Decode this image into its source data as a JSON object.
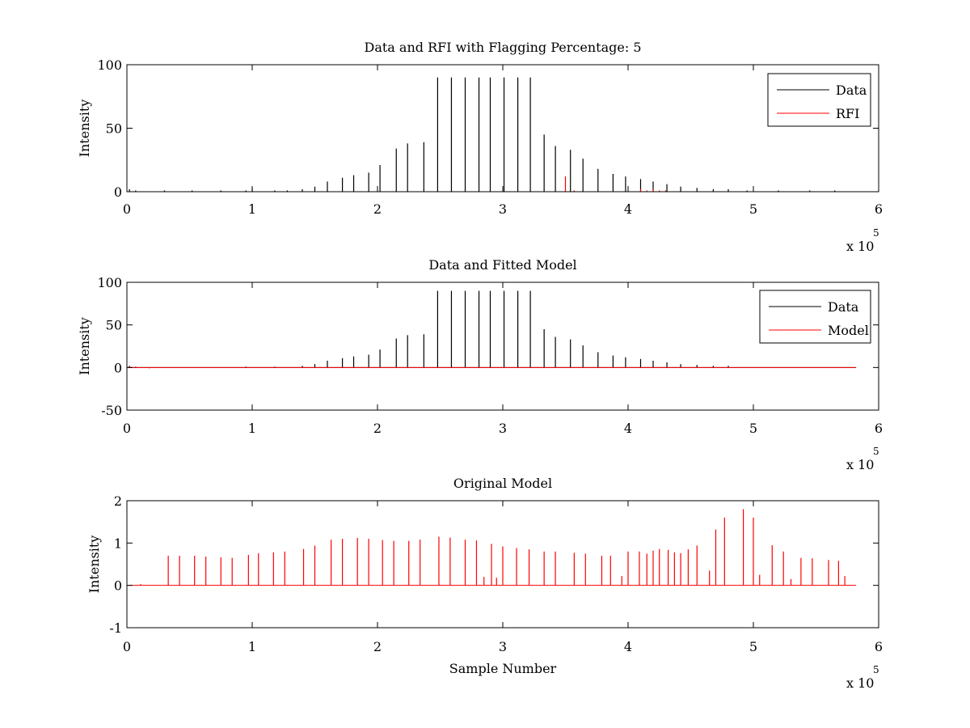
{
  "chart_data": [
    {
      "type": "line",
      "title": "Data and RFI with Flagging Percentage: 5",
      "xlabel": "",
      "ylabel": "Intensity",
      "xlim": [
        0,
        600000
      ],
      "ylim": [
        0,
        100
      ],
      "xticks": [
        "0",
        "1",
        "2",
        "3",
        "4",
        "5",
        "6"
      ],
      "yticks": [
        "0",
        "50",
        "100"
      ],
      "x_multiplier_label": "x 10",
      "x_multiplier_exponent": "5",
      "legend": {
        "placement": "top-right",
        "entries": [
          "Data",
          "RFI"
        ]
      },
      "series": [
        {
          "name": "Data",
          "color": "#000000",
          "baseline": 0,
          "spikes": [
            [
              2000,
              2
            ],
            [
              7000,
              1
            ],
            [
              30000,
              1
            ],
            [
              52000,
              1
            ],
            [
              75000,
              1
            ],
            [
              95000,
              1
            ],
            [
              100000,
              3
            ],
            [
              118000,
              1
            ],
            [
              128000,
              1
            ],
            [
              140000,
              2
            ],
            [
              150000,
              4
            ],
            [
              160000,
              8
            ],
            [
              172000,
              11
            ],
            [
              181000,
              13
            ],
            [
              193000,
              15
            ],
            [
              202000,
              21
            ],
            [
              215000,
              34
            ],
            [
              224000,
              38
            ],
            [
              237000,
              39
            ],
            [
              248000,
              90
            ],
            [
              259000,
              90
            ],
            [
              270000,
              90
            ],
            [
              281000,
              90
            ],
            [
              290000,
              90
            ],
            [
              301000,
              90
            ],
            [
              312000,
              90
            ],
            [
              322000,
              90
            ],
            [
              333000,
              45
            ],
            [
              342000,
              36
            ],
            [
              354000,
              33
            ],
            [
              364000,
              26
            ],
            [
              376000,
              18
            ],
            [
              388000,
              14
            ],
            [
              398000,
              12
            ],
            [
              410000,
              10
            ],
            [
              420000,
              8
            ],
            [
              431000,
              6
            ],
            [
              442000,
              4
            ],
            [
              455000,
              3
            ],
            [
              468000,
              2
            ],
            [
              480000,
              2
            ],
            [
              495000,
              1
            ],
            [
              520000,
              1
            ],
            [
              545000,
              1
            ],
            [
              565000,
              1
            ]
          ]
        },
        {
          "name": "RFI",
          "color": "#ff0000",
          "baseline": 0,
          "spikes": [
            [
              350000,
              12
            ],
            [
              357000,
              1
            ],
            [
              410000,
              2
            ],
            [
              415000,
              1
            ],
            [
              420000,
              2
            ],
            [
              425000,
              1
            ],
            [
              430000,
              1
            ]
          ]
        }
      ]
    },
    {
      "type": "line",
      "title": "Data and Fitted Model",
      "xlabel": "",
      "ylabel": "Intensity",
      "xlim": [
        0,
        600000
      ],
      "ylim": [
        -50,
        100
      ],
      "xticks": [
        "0",
        "1",
        "2",
        "3",
        "4",
        "5",
        "6"
      ],
      "yticks": [
        "-50",
        "0",
        "50",
        "100"
      ],
      "x_multiplier_label": "x 10",
      "x_multiplier_exponent": "5",
      "legend": {
        "placement": "top-right",
        "entries": [
          "Data",
          "Model"
        ]
      },
      "series": [
        {
          "name": "Data",
          "color": "#000000",
          "baseline": 0,
          "spikes": [
            [
              2000,
              2
            ],
            [
              7000,
              1
            ],
            [
              95000,
              1
            ],
            [
              118000,
              1
            ],
            [
              140000,
              2
            ],
            [
              150000,
              4
            ],
            [
              160000,
              8
            ],
            [
              172000,
              11
            ],
            [
              181000,
              13
            ],
            [
              193000,
              15
            ],
            [
              202000,
              21
            ],
            [
              215000,
              34
            ],
            [
              224000,
              38
            ],
            [
              237000,
              39
            ],
            [
              248000,
              90
            ],
            [
              259000,
              90
            ],
            [
              270000,
              90
            ],
            [
              281000,
              90
            ],
            [
              290000,
              90
            ],
            [
              301000,
              90
            ],
            [
              312000,
              90
            ],
            [
              322000,
              90
            ],
            [
              333000,
              45
            ],
            [
              342000,
              36
            ],
            [
              354000,
              33
            ],
            [
              364000,
              26
            ],
            [
              376000,
              18
            ],
            [
              388000,
              14
            ],
            [
              398000,
              12
            ],
            [
              410000,
              10
            ],
            [
              420000,
              8
            ],
            [
              431000,
              6
            ],
            [
              442000,
              4
            ],
            [
              455000,
              3
            ],
            [
              468000,
              2
            ],
            [
              480000,
              2
            ]
          ]
        },
        {
          "name": "Model",
          "color": "#ff0000",
          "baseline": 0,
          "spikes": [
            [
              2000,
              1
            ],
            [
              18000,
              -1
            ]
          ]
        }
      ]
    },
    {
      "type": "line",
      "title": "Original Model",
      "xlabel": "Sample Number",
      "ylabel": "Intensity",
      "xlim": [
        0,
        600000
      ],
      "ylim": [
        -1,
        2
      ],
      "xticks": [
        "0",
        "1",
        "2",
        "3",
        "4",
        "5",
        "6"
      ],
      "yticks": [
        "-1",
        "0",
        "1",
        "2"
      ],
      "x_multiplier_label": "x 10",
      "x_multiplier_exponent": "5",
      "series": [
        {
          "color": "#ff0000",
          "baseline": 0,
          "spikes": [
            [
              11000,
              0.03
            ],
            [
              33000,
              0.7
            ],
            [
              42000,
              0.7
            ],
            [
              54000,
              0.7
            ],
            [
              63000,
              0.68
            ],
            [
              75000,
              0.66
            ],
            [
              84000,
              0.65
            ],
            [
              97000,
              0.72
            ],
            [
              105000,
              0.76
            ],
            [
              117000,
              0.78
            ],
            [
              126000,
              0.8
            ],
            [
              141000,
              0.86
            ],
            [
              150000,
              0.94
            ],
            [
              163000,
              1.08
            ],
            [
              172000,
              1.1
            ],
            [
              184000,
              1.12
            ],
            [
              193000,
              1.1
            ],
            [
              204000,
              1.07
            ],
            [
              213000,
              1.05
            ],
            [
              225000,
              1.05
            ],
            [
              234000,
              1.08
            ],
            [
              249000,
              1.15
            ],
            [
              258000,
              1.13
            ],
            [
              270000,
              1.08
            ],
            [
              279000,
              1.06
            ],
            [
              291000,
              0.98
            ],
            [
              300000,
              0.92
            ],
            [
              311000,
              0.88
            ],
            [
              321000,
              0.85
            ],
            [
              333000,
              0.8
            ],
            [
              342000,
              0.8
            ],
            [
              357000,
              0.77
            ],
            [
              366000,
              0.75
            ],
            [
              379000,
              0.7
            ],
            [
              386000,
              0.7
            ],
            [
              400000,
              0.8
            ],
            [
              409000,
              0.8
            ],
            [
              415000,
              0.75
            ],
            [
              420000,
              0.82
            ],
            [
              425000,
              0.86
            ],
            [
              432000,
              0.84
            ],
            [
              437000,
              0.78
            ],
            [
              442000,
              0.76
            ],
            [
              448000,
              0.85
            ],
            [
              455000,
              0.94
            ],
            [
              470000,
              1.32
            ],
            [
              477000,
              1.6
            ],
            [
              492000,
              1.8
            ],
            [
              500000,
              1.6
            ],
            [
              515000,
              0.95
            ],
            [
              524000,
              0.8
            ],
            [
              538000,
              0.65
            ],
            [
              547000,
              0.64
            ],
            [
              560000,
              0.6
            ],
            [
              568000,
              0.58
            ],
            [
              573000,
              0.22
            ],
            [
              285000,
              0.2
            ],
            [
              295000,
              0.18
            ],
            [
              395000,
              0.22
            ],
            [
              465000,
              0.35
            ],
            [
              505000,
              0.25
            ],
            [
              530000,
              0.15
            ]
          ]
        }
      ]
    }
  ]
}
